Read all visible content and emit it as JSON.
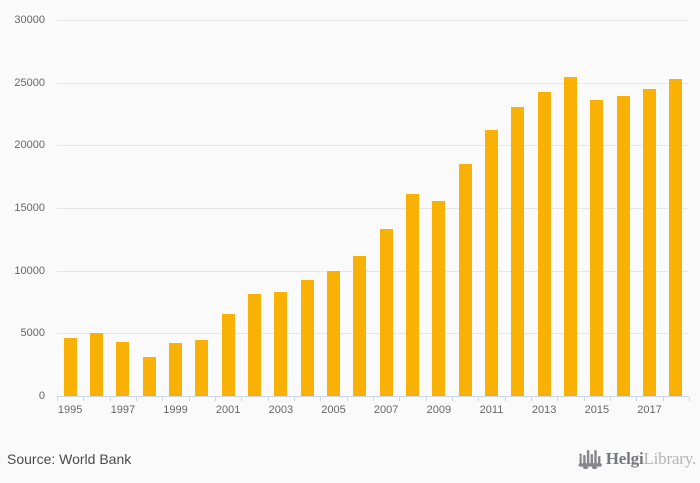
{
  "chart_data": {
    "type": "bar",
    "title": "",
    "xlabel": "",
    "ylabel": "",
    "categories": [
      "1995",
      "1996",
      "1997",
      "1998",
      "1999",
      "2000",
      "2001",
      "2002",
      "2003",
      "2004",
      "2005",
      "2006",
      "2007",
      "2008",
      "2009",
      "2010",
      "2011",
      "2012",
      "2013",
      "2014",
      "2015",
      "2016",
      "2017",
      "2018"
    ],
    "values": [
      4600,
      4990,
      4340,
      3110,
      4210,
      4480,
      6560,
      8160,
      8330,
      9220,
      10000,
      11150,
      13350,
      16140,
      15550,
      18520,
      21250,
      23050,
      24280,
      25480,
      23600,
      23900,
      24520,
      25300
    ],
    "ylim": [
      0,
      30000
    ],
    "ytick_interval": 5000,
    "ytick_labels": [
      "30000",
      "25000",
      "20000",
      "15000",
      "10000",
      "5000",
      "0"
    ],
    "x_labels_shown": [
      "1995",
      "1997",
      "1999",
      "2001",
      "2003",
      "2005",
      "2007",
      "2009",
      "2011",
      "2013",
      "2015",
      "2017"
    ],
    "grid": true,
    "legend": false,
    "bar_color": "#F9B105",
    "background_color": "#FAFAFA"
  },
  "colors": {
    "gridline": "#E7E7E7",
    "axis": "#CCD6EB",
    "axis_label": "#666666",
    "source_text": "#4A4A4A",
    "logo_dark": "#77787B",
    "logo_light": "#B3B4B6",
    "logo_icon": "#85868A"
  },
  "footer": {
    "source_label": "Source: World Bank"
  },
  "logo": {
    "name_bold": "Helgi",
    "name_light": "Library."
  }
}
